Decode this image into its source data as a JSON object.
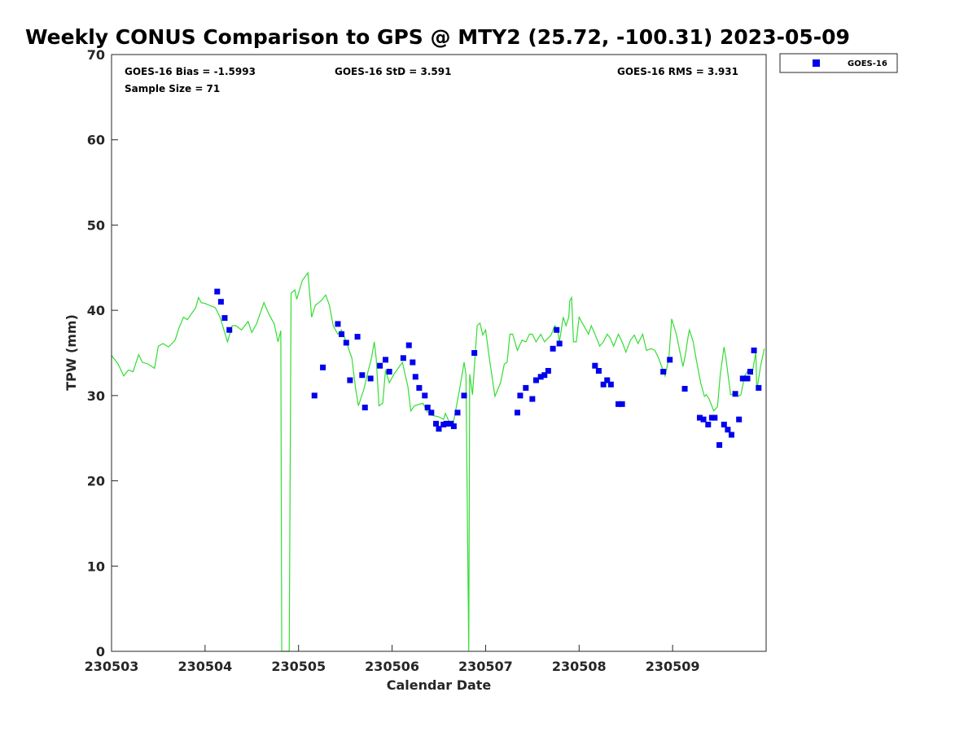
{
  "chart_data": {
    "type": "scatter",
    "title": "Weekly CONUS Comparison to GPS @ MTY2 (25.72, -100.31) 2023-05-09",
    "xlabel": "Calendar Date",
    "ylabel": "TPW (mm)",
    "xlim": [
      0,
      7
    ],
    "ylim": [
      0,
      70
    ],
    "x_units": "days since 230503",
    "xticks": [
      0,
      1,
      2,
      3,
      4,
      5,
      6
    ],
    "xtick_labels": [
      "230503",
      "230504",
      "230505",
      "230506",
      "230507",
      "230508",
      "230509"
    ],
    "yticks": [
      0,
      10,
      20,
      30,
      40,
      50,
      60,
      70
    ],
    "ytick_labels": [
      "0",
      "10",
      "20",
      "30",
      "40",
      "50",
      "60",
      "70"
    ],
    "grid": false,
    "legend": {
      "placement": "outside-top-right",
      "entries": [
        "GOES-16"
      ]
    },
    "annotations": {
      "bias": "GOES-16 Bias = -1.5993",
      "std": "GOES-16 StD = 3.591",
      "rms": "GOES-16 RMS = 3.931",
      "sample": "Sample Size = 71"
    },
    "colors": {
      "goes": "#0000ee",
      "gps": "#33dd33"
    },
    "series": [
      {
        "name": "GPS",
        "kind": "line",
        "points": [
          [
            0,
            34.7
          ],
          [
            0.07,
            33.7
          ],
          [
            0.13,
            32.3
          ],
          [
            0.18,
            33.0
          ],
          [
            0.23,
            32.8
          ],
          [
            0.29,
            34.8
          ],
          [
            0.33,
            33.9
          ],
          [
            0.39,
            33.7
          ],
          [
            0.46,
            33.2
          ],
          [
            0.5,
            35.8
          ],
          [
            0.55,
            36.1
          ],
          [
            0.61,
            35.7
          ],
          [
            0.68,
            36.5
          ],
          [
            0.72,
            37.9
          ],
          [
            0.77,
            39.2
          ],
          [
            0.81,
            38.9
          ],
          [
            0.9,
            40.3
          ],
          [
            0.93,
            41.5
          ],
          [
            0.96,
            40.9
          ],
          [
            1.0,
            40.8
          ],
          [
            1.11,
            40.3
          ],
          [
            1.16,
            39.2
          ],
          [
            1.21,
            37.4
          ],
          [
            1.24,
            36.3
          ],
          [
            1.29,
            38.2
          ],
          [
            1.33,
            38.2
          ],
          [
            1.39,
            37.7
          ],
          [
            1.46,
            38.7
          ],
          [
            1.5,
            37.4
          ],
          [
            1.55,
            38.4
          ],
          [
            1.63,
            40.9
          ],
          [
            1.68,
            39.6
          ],
          [
            1.74,
            38.4
          ],
          [
            1.78,
            36.3
          ],
          [
            1.81,
            37.6
          ],
          [
            1.82,
            0
          ],
          [
            1.9,
            0
          ],
          [
            1.92,
            42.0
          ],
          [
            1.96,
            42.4
          ],
          [
            1.98,
            41.3
          ],
          [
            2.04,
            43.5
          ],
          [
            2.1,
            44.4
          ],
          [
            2.14,
            39.2
          ],
          [
            2.18,
            40.6
          ],
          [
            2.24,
            41.1
          ],
          [
            2.29,
            41.8
          ],
          [
            2.33,
            40.6
          ],
          [
            2.37,
            38.2
          ],
          [
            2.42,
            37.2
          ],
          [
            2.46,
            37.7
          ],
          [
            2.51,
            36.3
          ],
          [
            2.57,
            34.4
          ],
          [
            2.61,
            30.8
          ],
          [
            2.64,
            28.8
          ],
          [
            2.7,
            30.8
          ],
          [
            2.74,
            32.7
          ],
          [
            2.78,
            34.4
          ],
          [
            2.81,
            36.3
          ],
          [
            2.83,
            34.4
          ],
          [
            2.86,
            28.8
          ],
          [
            2.9,
            29.1
          ],
          [
            2.93,
            33.0
          ],
          [
            2.97,
            31.5
          ],
          [
            3.02,
            32.5
          ],
          [
            3.11,
            33.9
          ],
          [
            3.17,
            31.0
          ],
          [
            3.2,
            28.2
          ],
          [
            3.24,
            28.8
          ],
          [
            3.33,
            29.1
          ],
          [
            3.37,
            28.2
          ],
          [
            3.42,
            27.7
          ],
          [
            3.5,
            27.5
          ],
          [
            3.55,
            27.2
          ],
          [
            3.57,
            27.9
          ],
          [
            3.62,
            26.7
          ],
          [
            3.66,
            27.1
          ],
          [
            3.72,
            30.6
          ],
          [
            3.77,
            33.9
          ],
          [
            3.79,
            32.5
          ],
          [
            3.82,
            0
          ],
          [
            3.83,
            32.5
          ],
          [
            3.86,
            30.1
          ],
          [
            3.91,
            38.2
          ],
          [
            3.94,
            38.5
          ],
          [
            3.97,
            37.1
          ],
          [
            4.0,
            37.7
          ],
          [
            4.04,
            34.4
          ],
          [
            4.1,
            29.9
          ],
          [
            4.16,
            31.5
          ],
          [
            4.2,
            33.7
          ],
          [
            4.23,
            33.9
          ],
          [
            4.26,
            37.2
          ],
          [
            4.29,
            37.2
          ],
          [
            4.34,
            35.3
          ],
          [
            4.39,
            36.5
          ],
          [
            4.43,
            36.3
          ],
          [
            4.47,
            37.2
          ],
          [
            4.5,
            37.2
          ],
          [
            4.54,
            36.3
          ],
          [
            4.59,
            37.2
          ],
          [
            4.63,
            36.3
          ],
          [
            4.7,
            37.1
          ],
          [
            4.74,
            38.2
          ],
          [
            4.77,
            37.7
          ],
          [
            4.79,
            36.3
          ],
          [
            4.83,
            39.2
          ],
          [
            4.86,
            38.2
          ],
          [
            4.89,
            39.2
          ],
          [
            4.9,
            41.1
          ],
          [
            4.92,
            41.5
          ],
          [
            4.94,
            36.3
          ],
          [
            4.97,
            36.3
          ],
          [
            5.0,
            39.2
          ],
          [
            5.1,
            37.2
          ],
          [
            5.13,
            38.2
          ],
          [
            5.17,
            37.2
          ],
          [
            5.22,
            35.8
          ],
          [
            5.26,
            36.3
          ],
          [
            5.3,
            37.2
          ],
          [
            5.33,
            36.8
          ],
          [
            5.37,
            35.8
          ],
          [
            5.42,
            37.2
          ],
          [
            5.46,
            36.3
          ],
          [
            5.5,
            35.1
          ],
          [
            5.55,
            36.5
          ],
          [
            5.59,
            37.1
          ],
          [
            5.63,
            36.1
          ],
          [
            5.68,
            37.2
          ],
          [
            5.72,
            35.3
          ],
          [
            5.77,
            35.5
          ],
          [
            5.81,
            35.3
          ],
          [
            5.85,
            34.4
          ],
          [
            5.9,
            32.9
          ],
          [
            5.92,
            32.3
          ],
          [
            5.96,
            34.4
          ],
          [
            5.99,
            39.0
          ],
          [
            6.04,
            37.2
          ],
          [
            6.11,
            33.4
          ],
          [
            6.13,
            34.4
          ],
          [
            6.17,
            37.2
          ],
          [
            6.18,
            37.7
          ],
          [
            6.22,
            36.3
          ],
          [
            6.25,
            34.4
          ],
          [
            6.3,
            31.5
          ],
          [
            6.34,
            29.9
          ],
          [
            6.36,
            30.1
          ],
          [
            6.39,
            29.6
          ],
          [
            6.44,
            28.2
          ],
          [
            6.48,
            28.7
          ],
          [
            6.51,
            32.5
          ],
          [
            6.55,
            35.7
          ],
          [
            6.57,
            34.4
          ],
          [
            6.62,
            30.1
          ],
          [
            6.66,
            30.2
          ],
          [
            6.7,
            29.9
          ],
          [
            6.73,
            30.1
          ],
          [
            6.77,
            32.3
          ],
          [
            6.81,
            33.0
          ],
          [
            6.85,
            32.5
          ],
          [
            6.89,
            35.1
          ],
          [
            6.9,
            30.6
          ],
          [
            6.94,
            33.4
          ],
          [
            6.98,
            35.5
          ]
        ]
      },
      {
        "name": "GOES-16",
        "kind": "scatter",
        "points": [
          [
            1.13,
            42.2
          ],
          [
            1.17,
            41.0
          ],
          [
            1.21,
            39.1
          ],
          [
            1.26,
            37.7
          ],
          [
            2.17,
            30.0
          ],
          [
            2.26,
            33.3
          ],
          [
            2.42,
            38.4
          ],
          [
            2.46,
            37.2
          ],
          [
            2.51,
            36.2
          ],
          [
            2.55,
            31.8
          ],
          [
            2.63,
            36.9
          ],
          [
            2.68,
            32.4
          ],
          [
            2.71,
            28.6
          ],
          [
            2.77,
            32.0
          ],
          [
            2.87,
            33.5
          ],
          [
            2.93,
            34.2
          ],
          [
            2.97,
            32.8
          ],
          [
            3.12,
            34.4
          ],
          [
            3.18,
            35.9
          ],
          [
            3.22,
            33.9
          ],
          [
            3.25,
            32.2
          ],
          [
            3.29,
            30.9
          ],
          [
            3.35,
            30.0
          ],
          [
            3.38,
            28.6
          ],
          [
            3.42,
            28.0
          ],
          [
            3.47,
            26.7
          ],
          [
            3.5,
            26.1
          ],
          [
            3.55,
            26.6
          ],
          [
            3.58,
            26.7
          ],
          [
            3.63,
            26.7
          ],
          [
            3.66,
            26.4
          ],
          [
            3.7,
            28.0
          ],
          [
            3.77,
            30.0
          ],
          [
            3.88,
            35.0
          ],
          [
            4.34,
            28.0
          ],
          [
            4.37,
            30.0
          ],
          [
            4.43,
            30.9
          ],
          [
            4.5,
            29.6
          ],
          [
            4.54,
            31.8
          ],
          [
            4.59,
            32.2
          ],
          [
            4.63,
            32.4
          ],
          [
            4.67,
            32.9
          ],
          [
            4.72,
            35.5
          ],
          [
            4.76,
            37.7
          ],
          [
            4.79,
            36.1
          ],
          [
            5.17,
            33.5
          ],
          [
            5.21,
            32.9
          ],
          [
            5.26,
            31.3
          ],
          [
            5.3,
            31.8
          ],
          [
            5.34,
            31.3
          ],
          [
            5.42,
            29.0
          ],
          [
            5.46,
            29.0
          ],
          [
            5.9,
            32.8
          ],
          [
            5.97,
            34.2
          ],
          [
            6.13,
            30.8
          ],
          [
            6.29,
            27.4
          ],
          [
            6.33,
            27.2
          ],
          [
            6.38,
            26.6
          ],
          [
            6.42,
            27.4
          ],
          [
            6.45,
            27.4
          ],
          [
            6.5,
            24.2
          ],
          [
            6.55,
            26.6
          ],
          [
            6.59,
            26.0
          ],
          [
            6.63,
            25.4
          ],
          [
            6.67,
            30.2
          ],
          [
            6.71,
            27.2
          ],
          [
            6.75,
            32.0
          ],
          [
            6.8,
            32.0
          ],
          [
            6.83,
            32.8
          ],
          [
            6.87,
            35.3
          ],
          [
            6.92,
            30.9
          ]
        ]
      }
    ]
  }
}
